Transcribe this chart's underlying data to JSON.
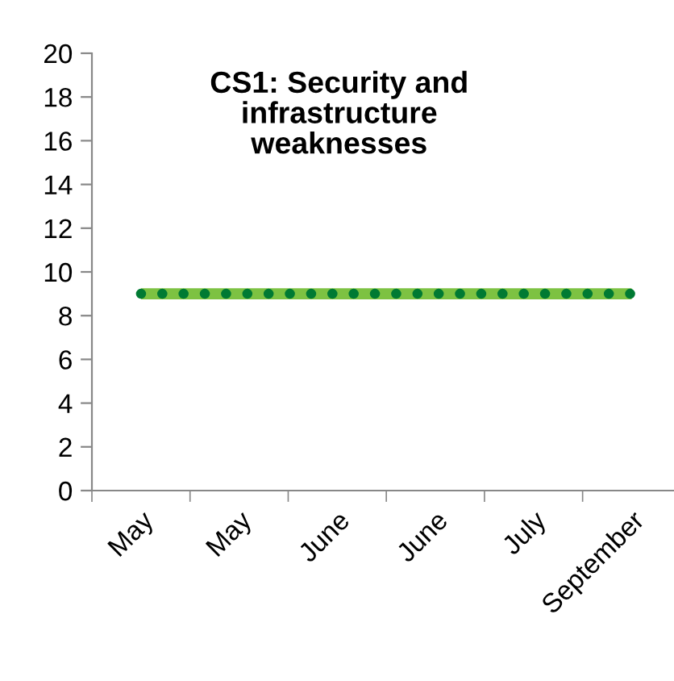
{
  "chart_data": {
    "type": "line",
    "title": "CS1: Security and\ninfrastructure\nweaknesses",
    "categories": [
      "May",
      "May",
      "June",
      "June",
      "July",
      "September"
    ],
    "series": [
      {
        "color": "#7dc242",
        "values": [
          9,
          9,
          9,
          9,
          9,
          9
        ],
        "line_style": "solid"
      },
      {
        "color": "#007a33",
        "values": [
          9,
          9,
          9,
          9,
          9,
          9
        ],
        "line_style": "dotted"
      }
    ],
    "ylim": [
      0,
      20
    ],
    "yticks": [
      0,
      2,
      4,
      6,
      8,
      10,
      12,
      14,
      16,
      18,
      20
    ],
    "grid": false,
    "legend": false,
    "marker": "none"
  }
}
